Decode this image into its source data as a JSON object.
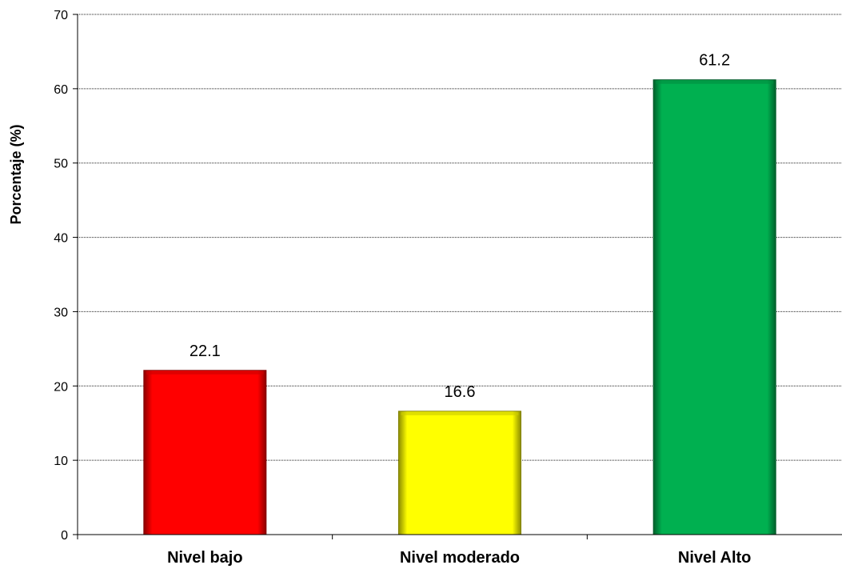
{
  "chart_data": {
    "type": "bar",
    "title": "",
    "xlabel": "",
    "ylabel": "Porcentaje (%)",
    "categories": [
      "Nivel bajo",
      "Nivel moderado",
      "Nivel Alto"
    ],
    "values": [
      22.1,
      16.6,
      61.2
    ],
    "data_labels": [
      "22.1",
      "16.6",
      "61.2"
    ],
    "ylim": [
      0,
      70
    ],
    "yticks": [
      0,
      10,
      20,
      30,
      40,
      50,
      60,
      70
    ],
    "grid": true,
    "legend": "none",
    "colors": [
      "#ff0000",
      "#ffff00",
      "#00b050"
    ]
  }
}
